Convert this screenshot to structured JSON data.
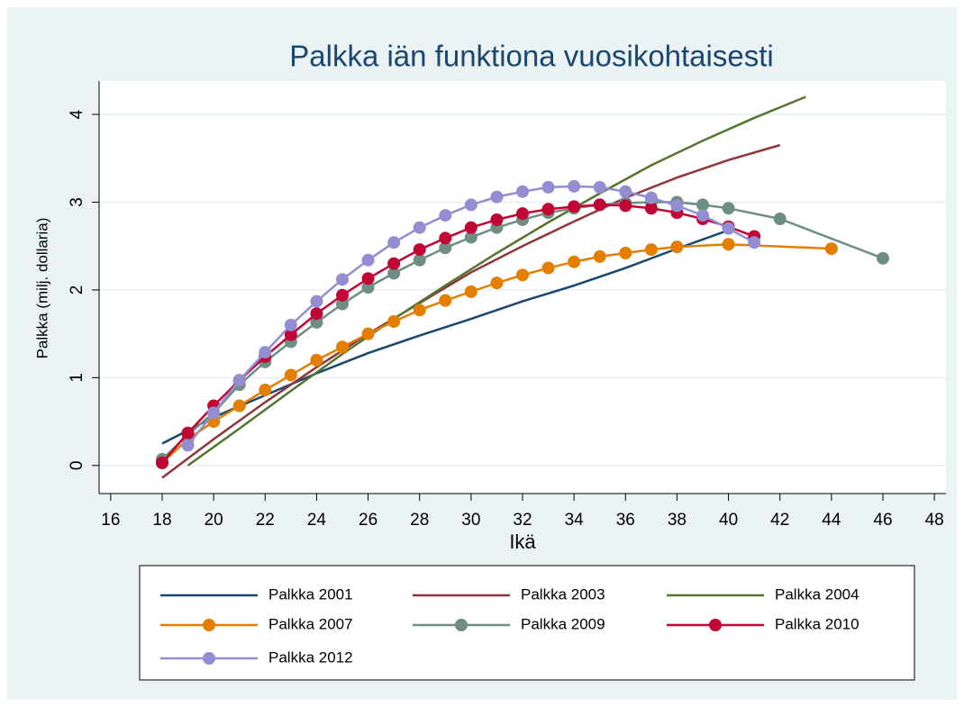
{
  "chart_data": {
    "type": "line",
    "title": "Palkka iän funktiona vuosikohtaisesti",
    "xlabel": "Ikä",
    "ylabel": "Palkka (milj. dollaria)",
    "xlim": [
      15.55,
      48.45
    ],
    "ylim": [
      -0.32,
      4.38
    ],
    "xticks": [
      16,
      18,
      20,
      22,
      24,
      26,
      28,
      30,
      32,
      34,
      36,
      38,
      40,
      42,
      44,
      46,
      48
    ],
    "yticks": [
      0,
      1,
      2,
      3,
      4
    ],
    "grid": true,
    "legend": "bottom",
    "series": [
      {
        "name": "Palkka 2001",
        "color": "#1a476f",
        "marker": false,
        "x": [
          18,
          20,
          22,
          24,
          26,
          28,
          30,
          32,
          34,
          36,
          38,
          40
        ],
        "values": [
          0.25,
          0.55,
          0.8,
          1.05,
          1.28,
          1.48,
          1.67,
          1.87,
          2.05,
          2.25,
          2.47,
          2.68
        ]
      },
      {
        "name": "Palkka 2003",
        "color": "#90353b",
        "marker": false,
        "x": [
          18,
          20,
          22,
          24,
          26,
          28,
          30,
          32,
          34,
          36,
          38,
          40,
          42
        ],
        "values": [
          -0.14,
          0.3,
          0.72,
          1.12,
          1.5,
          1.85,
          2.2,
          2.5,
          2.78,
          3.05,
          3.28,
          3.48,
          3.65
        ]
      },
      {
        "name": "Palkka 2004",
        "color": "#55752f",
        "marker": false,
        "x": [
          19,
          21,
          23,
          25,
          27,
          29,
          31,
          33,
          35,
          37,
          39,
          41,
          43
        ],
        "values": [
          0,
          0.42,
          0.85,
          1.27,
          1.67,
          2.05,
          2.42,
          2.77,
          3.1,
          3.42,
          3.7,
          3.96,
          4.2
        ]
      },
      {
        "name": "Palkka 2007",
        "color": "#e37e00",
        "marker": true,
        "x": [
          18,
          19,
          20,
          21,
          22,
          23,
          24,
          25,
          26,
          27,
          28,
          29,
          30,
          31,
          32,
          33,
          34,
          35,
          36,
          37,
          38,
          40,
          44
        ],
        "values": [
          0.03,
          0.3,
          0.5,
          0.68,
          0.86,
          1.03,
          1.2,
          1.35,
          1.5,
          1.64,
          1.77,
          1.88,
          1.98,
          2.08,
          2.17,
          2.25,
          2.32,
          2.38,
          2.42,
          2.46,
          2.49,
          2.52,
          2.47
        ]
      },
      {
        "name": "Palkka 2009",
        "color": "#6e8e84",
        "marker": true,
        "x": [
          18,
          19,
          20,
          21,
          22,
          23,
          24,
          25,
          26,
          27,
          28,
          29,
          30,
          31,
          32,
          33,
          34,
          35,
          36,
          37,
          38,
          39,
          40,
          42,
          46
        ],
        "values": [
          0.07,
          0.35,
          0.6,
          0.92,
          1.18,
          1.41,
          1.63,
          1.84,
          2.03,
          2.19,
          2.34,
          2.48,
          2.6,
          2.71,
          2.8,
          2.88,
          2.93,
          2.97,
          2.99,
          3.0,
          3.0,
          2.97,
          2.93,
          2.81,
          2.36
        ]
      },
      {
        "name": "Palkka 2010",
        "color": "#c10534",
        "marker": true,
        "x": [
          18,
          19,
          20,
          21,
          22,
          23,
          24,
          25,
          26,
          27,
          28,
          29,
          30,
          31,
          32,
          33,
          34,
          35,
          36,
          37,
          38,
          39,
          40,
          41
        ],
        "values": [
          0.03,
          0.37,
          0.68,
          0.97,
          1.24,
          1.49,
          1.73,
          1.94,
          2.13,
          2.3,
          2.46,
          2.59,
          2.71,
          2.8,
          2.87,
          2.92,
          2.95,
          2.97,
          2.96,
          2.93,
          2.88,
          2.81,
          2.72,
          2.61
        ]
      },
      {
        "name": "Palkka 2012",
        "color": "#938dd2",
        "marker": true,
        "x": [
          19,
          20,
          21,
          22,
          23,
          24,
          25,
          26,
          27,
          28,
          29,
          30,
          31,
          32,
          33,
          34,
          35,
          36,
          37,
          38,
          39,
          40,
          41
        ],
        "values": [
          0.23,
          0.6,
          0.97,
          1.29,
          1.6,
          1.87,
          2.12,
          2.34,
          2.54,
          2.71,
          2.85,
          2.97,
          3.06,
          3.12,
          3.17,
          3.18,
          3.17,
          3.12,
          3.05,
          2.96,
          2.85,
          2.7,
          2.54
        ]
      }
    ]
  }
}
